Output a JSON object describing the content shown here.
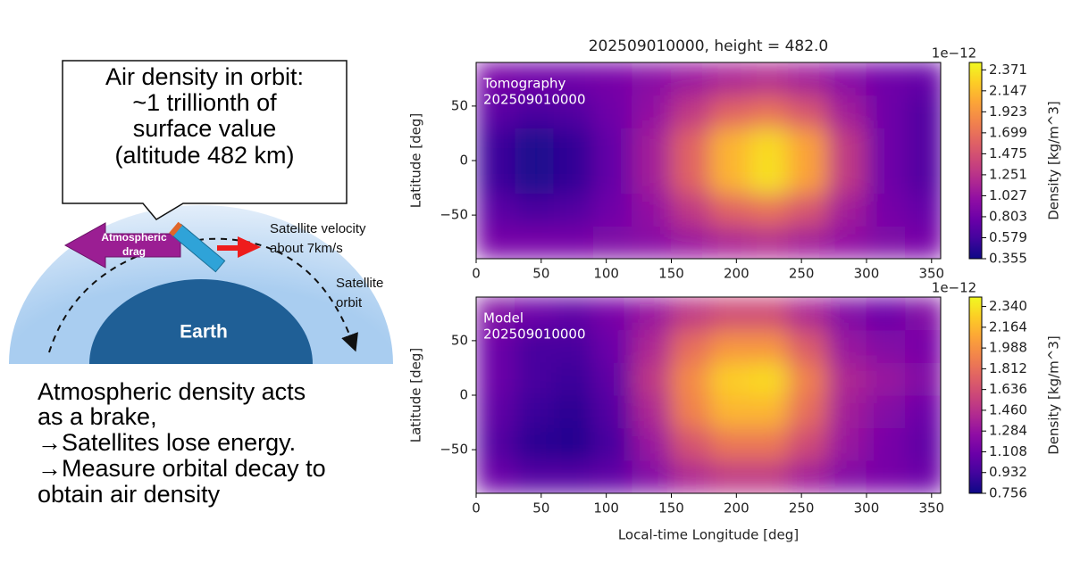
{
  "diagram": {
    "callout": [
      "Air density in orbit:",
      "~1 trillionth of",
      "surface value",
      "(altitude 482 km)"
    ],
    "drag_label": [
      "Atmospheric",
      "drag"
    ],
    "velocity_label": [
      "Satellite velocity",
      "about 7km/s"
    ],
    "orbit_label": [
      "Satellite",
      "orbit"
    ],
    "earth_label": "Earth",
    "caption": [
      "Atmospheric density acts",
      "as a brake,",
      "→Satellites lose energy.",
      "→Measure orbital decay to",
      "obtain air density"
    ]
  },
  "chart_data": [
    {
      "type": "heatmap",
      "title": "202509010000, height = 482.0",
      "annotation": [
        "Tomography",
        "202509010000"
      ],
      "colormap": "plasma",
      "x": [
        15,
        45,
        75,
        105,
        135,
        165,
        195,
        225,
        255,
        285,
        315,
        345
      ],
      "y": [
        -75,
        -45,
        -15,
        15,
        45,
        75
      ],
      "z": [
        [
          0.85,
          0.85,
          0.85,
          0.9,
          0.95,
          1.05,
          1.15,
          1.2,
          1.1,
          1.0,
          0.9,
          0.85
        ],
        [
          0.7,
          0.6,
          0.65,
          0.8,
          1.0,
          1.3,
          1.6,
          1.7,
          1.5,
          1.1,
          0.85,
          0.75
        ],
        [
          0.55,
          0.42,
          0.5,
          0.75,
          1.1,
          1.6,
          2.1,
          2.33,
          2.0,
          1.3,
          0.8,
          0.65
        ],
        [
          0.55,
          0.42,
          0.5,
          0.75,
          1.1,
          1.6,
          2.1,
          2.3,
          2.0,
          1.3,
          0.8,
          0.65
        ],
        [
          0.7,
          0.6,
          0.65,
          0.8,
          1.0,
          1.3,
          1.6,
          1.7,
          1.5,
          1.1,
          0.8,
          0.65
        ],
        [
          0.85,
          0.8,
          0.8,
          0.85,
          0.95,
          1.05,
          1.15,
          1.2,
          1.1,
          0.95,
          0.8,
          0.75
        ]
      ],
      "xlim": [
        0,
        357
      ],
      "xticks": [
        0,
        50,
        100,
        150,
        200,
        250,
        300,
        350
      ],
      "ylim": [
        -90,
        90
      ],
      "yticks": [
        {
          "value": -50,
          "label": "−50"
        },
        0,
        50
      ],
      "ylabel": "Latitude [deg]",
      "zlim": [
        0.355,
        2.45
      ],
      "colorbar_ticks": [
        0.355,
        0.579,
        0.803,
        1.027,
        1.251,
        1.475,
        1.699,
        1.923,
        2.147,
        2.371
      ],
      "colorbar_label": "Density [kg/m^3]",
      "colorbar_offset": "1e−12"
    },
    {
      "type": "heatmap",
      "annotation": [
        "Model",
        "202509010000"
      ],
      "colormap": "plasma",
      "x": [
        15,
        45,
        75,
        105,
        135,
        165,
        195,
        225,
        255,
        285,
        315,
        345
      ],
      "y": [
        -75,
        -45,
        -15,
        15,
        45,
        75
      ],
      "z": [
        [
          1.1,
          1.0,
          1.0,
          1.05,
          1.2,
          1.4,
          1.5,
          1.5,
          1.35,
          1.2,
          1.15,
          1.1
        ],
        [
          1.0,
          0.85,
          0.82,
          0.95,
          1.3,
          1.65,
          1.85,
          1.85,
          1.6,
          1.3,
          1.15,
          1.05
        ],
        [
          1.05,
          0.9,
          0.85,
          1.0,
          1.4,
          1.9,
          2.15,
          2.15,
          1.8,
          1.35,
          1.2,
          1.1
        ],
        [
          1.1,
          0.95,
          0.9,
          1.05,
          1.5,
          1.95,
          2.25,
          2.3,
          1.9,
          1.4,
          1.3,
          1.2
        ],
        [
          1.1,
          0.95,
          0.95,
          1.1,
          1.4,
          1.8,
          2.0,
          2.0,
          1.7,
          1.3,
          1.2,
          1.15
        ],
        [
          1.2,
          1.1,
          1.05,
          1.15,
          1.3,
          1.5,
          1.6,
          1.6,
          1.4,
          1.2,
          1.1,
          1.2
        ]
      ],
      "xlim": [
        0,
        357
      ],
      "xticks": [
        0,
        50,
        100,
        150,
        200,
        250,
        300,
        350
      ],
      "ylim": [
        -90,
        90
      ],
      "yticks": [
        {
          "value": -50,
          "label": "−50"
        },
        0,
        50
      ],
      "xlabel": "Local-time Longitude [deg]",
      "ylabel": "Latitude [deg]",
      "zlim": [
        0.756,
        2.42
      ],
      "colorbar_ticks": [
        0.756,
        0.932,
        1.108,
        1.284,
        {
          "value": 1.46,
          "label": "1.460"
        },
        1.636,
        1.812,
        1.988,
        2.164,
        {
          "value": 2.34,
          "label": "2.340"
        }
      ],
      "colorbar_label": "Density [kg/m^3]",
      "colorbar_offset": "1e−12"
    }
  ]
}
